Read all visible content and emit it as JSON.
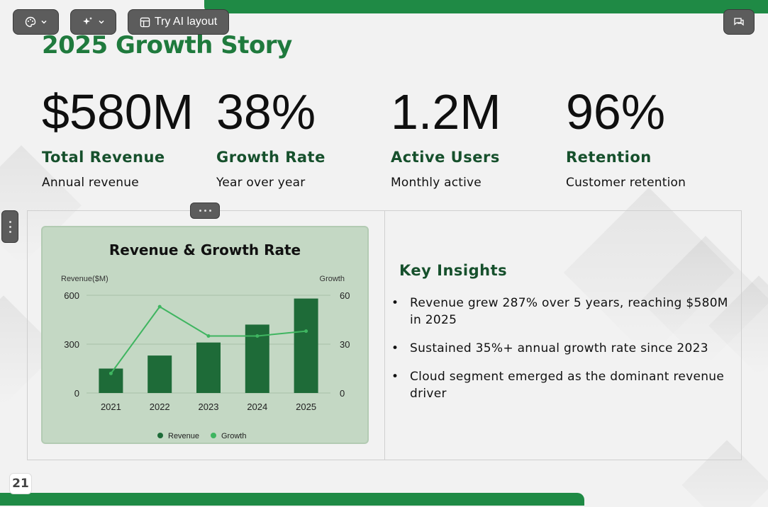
{
  "toolbar": {
    "theme_icon": "palette-icon",
    "ai_icon": "sparkle-icon",
    "layout_label": "Try AI layout",
    "comment_icon": "comment-icon"
  },
  "slide": {
    "title": "2025 Growth Story",
    "page_number": "21",
    "accent_color": "#1f8a45"
  },
  "stats": [
    {
      "value": "$580M",
      "label": "Total Revenue",
      "sub": "Annual revenue"
    },
    {
      "value": "38%",
      "label": "Growth Rate",
      "sub": "Year over year"
    },
    {
      "value": "1.2M",
      "label": "Active Users",
      "sub": "Monthly active"
    },
    {
      "value": "96%",
      "label": "Retention",
      "sub": "Customer retention"
    }
  ],
  "insights": {
    "heading": "Key Insights",
    "items": [
      "Revenue grew 287% over 5 years, reaching $580M in 2025",
      "Sustained 35%+ annual growth rate since 2023",
      "Cloud segment emerged as the dominant revenue driver"
    ]
  },
  "chart_data": {
    "type": "bar",
    "title": "Revenue & Growth Rate",
    "categories": [
      "2021",
      "2022",
      "2023",
      "2024",
      "2025"
    ],
    "series": [
      {
        "name": "Revenue",
        "type": "bar",
        "axis": "left",
        "values": [
          150,
          230,
          310,
          420,
          580
        ],
        "color": "#1e6b38"
      },
      {
        "name": "Growth",
        "type": "line",
        "axis": "right",
        "values": [
          12,
          53,
          35,
          35,
          38
        ],
        "color": "#3fb560"
      }
    ],
    "ylabel": "Revenue($M)",
    "y2label": "Growth",
    "ylim": [
      0,
      600
    ],
    "yticks": [
      "0",
      "300",
      "600"
    ],
    "y2lim": [
      0,
      60
    ],
    "y2ticks": [
      "0",
      "30",
      "60"
    ],
    "legend": "bottom",
    "grid": true
  }
}
